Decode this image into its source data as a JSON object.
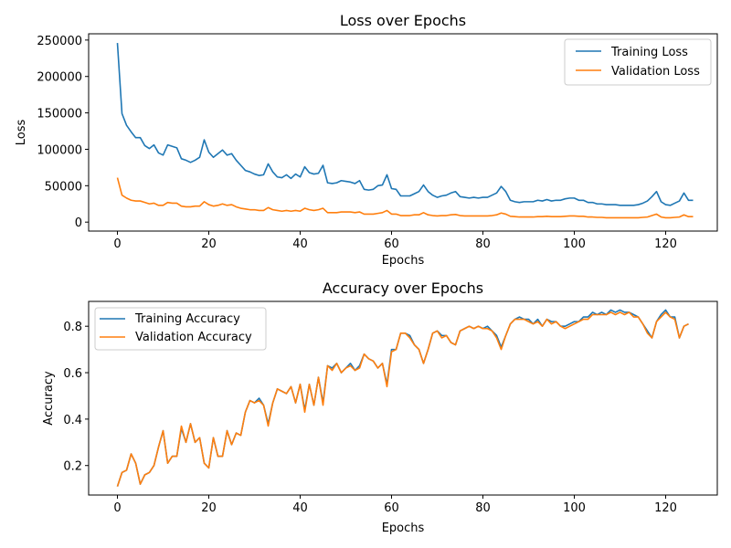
{
  "chart_data": [
    {
      "type": "line",
      "title": "Loss over Epochs",
      "xlabel": "Epochs",
      "ylabel": "Loss",
      "xlim": [
        -6.3,
        131.3
      ],
      "ylim": [
        -12300,
        258600
      ],
      "xticks": [
        0,
        20,
        40,
        60,
        80,
        100,
        120
      ],
      "xtick_labels": [
        "0",
        "20",
        "40",
        "60",
        "80",
        "100",
        "120"
      ],
      "yticks": [
        0,
        50000,
        100000,
        150000,
        200000,
        250000
      ],
      "ytick_labels": [
        "0",
        "50000",
        "100000",
        "150000",
        "200000",
        "250000"
      ],
      "grid": false,
      "legend_position": "top-right",
      "series": [
        {
          "name": "Training Loss",
          "color": "#1f77b4",
          "values": [
            246000,
            149000,
            133000,
            124000,
            116000,
            116000,
            105000,
            101000,
            106000,
            95000,
            92000,
            106000,
            104000,
            102000,
            87000,
            85000,
            82000,
            85000,
            89000,
            113000,
            96000,
            89000,
            94000,
            99000,
            92000,
            94000,
            85000,
            78000,
            71000,
            69000,
            66000,
            64000,
            65000,
            80000,
            69000,
            62000,
            61000,
            65000,
            60000,
            66000,
            62000,
            76000,
            68000,
            66000,
            67000,
            78000,
            54000,
            53000,
            54000,
            57000,
            56000,
            55000,
            53000,
            57000,
            45000,
            44000,
            45000,
            50000,
            51000,
            65000,
            46000,
            45000,
            36000,
            36000,
            36000,
            39000,
            42000,
            51000,
            42000,
            37000,
            34000,
            36000,
            37000,
            40000,
            42000,
            35000,
            34000,
            33000,
            34000,
            33000,
            34000,
            34000,
            37000,
            40000,
            49000,
            42000,
            30000,
            28000,
            27000,
            28000,
            28000,
            28000,
            30000,
            29000,
            31000,
            29000,
            30000,
            30000,
            32000,
            33000,
            33000,
            30000,
            30000,
            27000,
            27000,
            25000,
            25000,
            24000,
            24000,
            24000,
            23000,
            23000,
            23000,
            23000,
            24000,
            26000,
            29000,
            35000,
            42000,
            28000,
            24000,
            23000,
            26000,
            29000,
            40000,
            30000,
            30000
          ]
        },
        {
          "name": "Validation Loss",
          "color": "#ff7f0e",
          "values": [
            61000,
            37000,
            33000,
            30000,
            29000,
            29000,
            27000,
            25000,
            26000,
            23000,
            23000,
            27000,
            26000,
            26000,
            22000,
            21000,
            21000,
            22000,
            22000,
            28000,
            24000,
            22000,
            23000,
            25000,
            23000,
            24000,
            21000,
            19000,
            18000,
            17000,
            17000,
            16000,
            16000,
            20000,
            17000,
            16000,
            15000,
            16000,
            15000,
            16000,
            15000,
            19000,
            17000,
            16000,
            17000,
            19000,
            13000,
            13000,
            13000,
            14000,
            14000,
            14000,
            13000,
            14000,
            11000,
            11000,
            11000,
            12000,
            13000,
            16000,
            11000,
            11000,
            9000,
            9000,
            9000,
            10000,
            10000,
            13000,
            10000,
            9000,
            8500,
            9000,
            9000,
            10000,
            10500,
            9000,
            8500,
            8500,
            8500,
            8500,
            8500,
            8500,
            9000,
            10000,
            12500,
            11000,
            8000,
            7500,
            7000,
            7000,
            7000,
            7000,
            7500,
            7500,
            8000,
            7500,
            7500,
            7500,
            8000,
            8500,
            8500,
            8000,
            8000,
            7000,
            7000,
            6500,
            6500,
            6000,
            6000,
            6000,
            6000,
            6000,
            6000,
            6000,
            6000,
            6500,
            7000,
            9000,
            11000,
            7000,
            6000,
            6000,
            6500,
            7000,
            10000,
            7500,
            7500
          ]
        }
      ]
    },
    {
      "type": "line",
      "title": "Accuracy over Epochs",
      "xlabel": "Epochs",
      "ylabel": "Accuracy",
      "xlim": [
        -6.3,
        131.3
      ],
      "ylim": [
        0.073,
        0.907
      ],
      "xticks": [
        0,
        20,
        40,
        60,
        80,
        100,
        120
      ],
      "xtick_labels": [
        "0",
        "20",
        "40",
        "60",
        "80",
        "100",
        "120"
      ],
      "yticks": [
        0.2,
        0.4,
        0.6,
        0.8
      ],
      "ytick_labels": [
        "0.2",
        "0.4",
        "0.6",
        "0.8"
      ],
      "grid": false,
      "legend_position": "top-left",
      "series": [
        {
          "name": "Training Accuracy",
          "color": "#1f77b4",
          "values": [
            0.11,
            0.17,
            0.18,
            0.25,
            0.21,
            0.12,
            0.16,
            0.17,
            0.2,
            0.28,
            0.35,
            0.21,
            0.24,
            0.24,
            0.36,
            0.3,
            0.38,
            0.3,
            0.32,
            0.21,
            0.19,
            0.32,
            0.24,
            0.24,
            0.35,
            0.29,
            0.34,
            0.33,
            0.43,
            0.48,
            0.47,
            0.49,
            0.46,
            0.38,
            0.47,
            0.53,
            0.52,
            0.51,
            0.54,
            0.47,
            0.55,
            0.44,
            0.55,
            0.46,
            0.58,
            0.47,
            0.63,
            0.62,
            0.64,
            0.6,
            0.62,
            0.64,
            0.61,
            0.63,
            0.68,
            0.66,
            0.65,
            0.62,
            0.64,
            0.55,
            0.7,
            0.7,
            0.77,
            0.77,
            0.76,
            0.72,
            0.7,
            0.64,
            0.7,
            0.77,
            0.78,
            0.76,
            0.76,
            0.73,
            0.72,
            0.78,
            0.79,
            0.8,
            0.79,
            0.8,
            0.79,
            0.8,
            0.78,
            0.76,
            0.71,
            0.76,
            0.81,
            0.83,
            0.84,
            0.83,
            0.83,
            0.81,
            0.83,
            0.8,
            0.83,
            0.82,
            0.82,
            0.8,
            0.8,
            0.81,
            0.82,
            0.82,
            0.84,
            0.84,
            0.86,
            0.85,
            0.86,
            0.85,
            0.87,
            0.86,
            0.87,
            0.86,
            0.86,
            0.85,
            0.84,
            0.81,
            0.78,
            0.75,
            0.82,
            0.85,
            0.87,
            0.84,
            0.84,
            0.75,
            0.8,
            0.81
          ]
        },
        {
          "name": "Validation Accuracy",
          "color": "#ff7f0e",
          "values": [
            0.11,
            0.17,
            0.18,
            0.25,
            0.21,
            0.12,
            0.16,
            0.17,
            0.2,
            0.28,
            0.35,
            0.21,
            0.24,
            0.24,
            0.37,
            0.3,
            0.38,
            0.3,
            0.32,
            0.21,
            0.19,
            0.32,
            0.24,
            0.24,
            0.35,
            0.29,
            0.34,
            0.33,
            0.43,
            0.48,
            0.47,
            0.48,
            0.46,
            0.37,
            0.47,
            0.53,
            0.52,
            0.51,
            0.54,
            0.47,
            0.55,
            0.43,
            0.55,
            0.46,
            0.58,
            0.46,
            0.63,
            0.61,
            0.64,
            0.6,
            0.62,
            0.63,
            0.61,
            0.62,
            0.68,
            0.66,
            0.65,
            0.62,
            0.64,
            0.54,
            0.69,
            0.7,
            0.77,
            0.77,
            0.75,
            0.72,
            0.7,
            0.64,
            0.7,
            0.77,
            0.78,
            0.75,
            0.76,
            0.73,
            0.72,
            0.78,
            0.79,
            0.8,
            0.79,
            0.8,
            0.79,
            0.79,
            0.78,
            0.75,
            0.7,
            0.76,
            0.81,
            0.83,
            0.83,
            0.83,
            0.82,
            0.81,
            0.82,
            0.8,
            0.83,
            0.81,
            0.82,
            0.8,
            0.79,
            0.8,
            0.81,
            0.82,
            0.83,
            0.83,
            0.85,
            0.85,
            0.85,
            0.85,
            0.86,
            0.85,
            0.86,
            0.85,
            0.86,
            0.84,
            0.84,
            0.81,
            0.77,
            0.75,
            0.82,
            0.84,
            0.86,
            0.84,
            0.83,
            0.75,
            0.8,
            0.81
          ]
        }
      ]
    }
  ]
}
